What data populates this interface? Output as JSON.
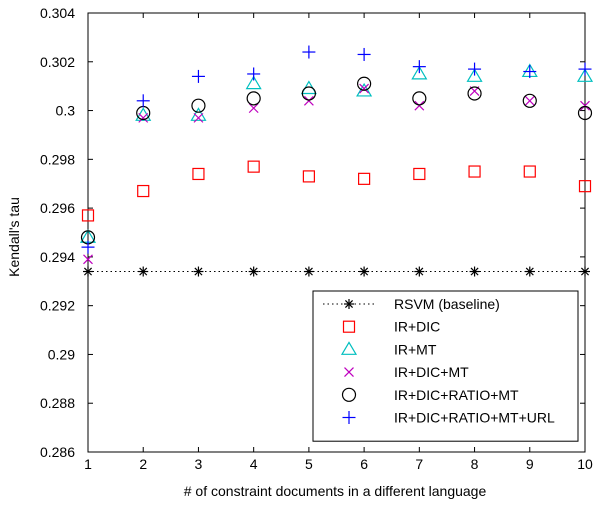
{
  "chart_data": {
    "type": "scatter",
    "xlabel": "# of constraint documents in a different language",
    "ylabel": "Kendall's tau",
    "xlim": [
      1,
      10
    ],
    "ylim": [
      0.286,
      0.304
    ],
    "xticks": [
      1,
      2,
      3,
      4,
      5,
      6,
      7,
      8,
      9,
      10
    ],
    "xtick_labels": [
      "1",
      "2",
      "3",
      "4",
      "5",
      "6",
      "7",
      "8",
      "9",
      "10"
    ],
    "yticks": [
      0.286,
      0.288,
      0.29,
      0.292,
      0.294,
      0.296,
      0.298,
      0.3,
      0.302,
      0.304
    ],
    "ytick_labels": [
      "0.286",
      "0.288",
      "0.29",
      "0.292",
      "0.294",
      "0.296",
      "0.298",
      "0.3",
      "0.302",
      "0.304"
    ],
    "grid": false,
    "legend_position": "bottom-right",
    "x": [
      1,
      2,
      3,
      4,
      5,
      6,
      7,
      8,
      9,
      10
    ],
    "series": [
      {
        "name": "RSVM (baseline)",
        "marker": "asterisk",
        "line": "dotted",
        "color": "#000000",
        "values": [
          0.2934,
          0.2934,
          0.2934,
          0.2934,
          0.2934,
          0.2934,
          0.2934,
          0.2934,
          0.2934,
          0.2934
        ]
      },
      {
        "name": "IR+DIC",
        "marker": "square",
        "line": "none",
        "color": "#ff0000",
        "values": [
          0.2957,
          0.2967,
          0.2974,
          0.2977,
          0.2973,
          0.2972,
          0.2974,
          0.2975,
          0.2975,
          0.2969
        ]
      },
      {
        "name": "IR+MT",
        "marker": "triangle",
        "line": "none",
        "color": "#00bfbf",
        "values": [
          0.2948,
          0.2998,
          0.2998,
          0.3011,
          0.3009,
          0.3008,
          0.3015,
          0.3014,
          0.3016,
          0.3014
        ]
      },
      {
        "name": "IR+DIC+MT",
        "marker": "x",
        "line": "none",
        "color": "#bf00bf",
        "values": [
          0.2939,
          0.2997,
          0.2997,
          0.3001,
          0.3004,
          0.3009,
          0.3002,
          0.3008,
          0.3004,
          0.3002
        ]
      },
      {
        "name": "IR+DIC+RATIO+MT",
        "marker": "circle",
        "line": "none",
        "color": "#000000",
        "values": [
          0.2948,
          0.2999,
          0.3002,
          0.3005,
          0.3007,
          0.3011,
          0.3005,
          0.3007,
          0.3004,
          0.2999
        ]
      },
      {
        "name": "IR+DIC+RATIO+MT+URL",
        "marker": "plus",
        "line": "none",
        "color": "#0000ff",
        "values": [
          0.2944,
          0.3004,
          0.3014,
          0.3015,
          0.3024,
          0.3023,
          0.3018,
          0.3017,
          0.3016,
          0.3017
        ]
      }
    ]
  }
}
